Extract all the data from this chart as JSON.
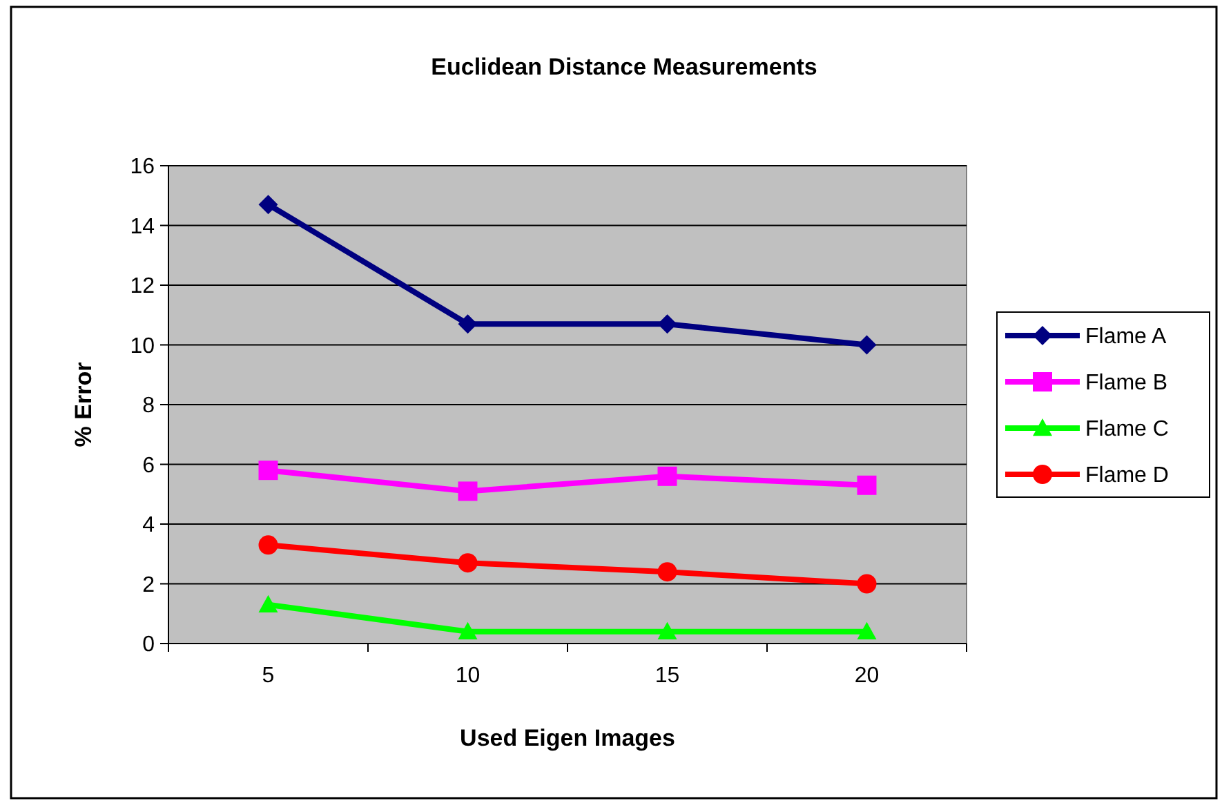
{
  "chart_data": {
    "type": "line",
    "title": "Euclidean Distance Measurements",
    "xlabel": "Used Eigen Images",
    "ylabel": "% Error",
    "categories": [
      "5",
      "10",
      "15",
      "20"
    ],
    "series": [
      {
        "name": "Flame A",
        "color": "#000080",
        "marker": "diamond",
        "values": [
          14.7,
          10.7,
          10.7,
          10.0
        ]
      },
      {
        "name": "Flame B",
        "color": "#ff00ff",
        "marker": "square",
        "values": [
          5.8,
          5.1,
          5.6,
          5.3
        ]
      },
      {
        "name": "Flame C",
        "color": "#00ff00",
        "marker": "triangle",
        "values": [
          1.3,
          0.4,
          0.4,
          0.4
        ]
      },
      {
        "name": "Flame D",
        "color": "#ff0000",
        "marker": "circle",
        "values": [
          3.3,
          2.7,
          2.4,
          2.0
        ]
      }
    ],
    "ylim": [
      0,
      16
    ],
    "yticks": [
      0,
      2,
      4,
      6,
      8,
      10,
      12,
      14,
      16
    ],
    "grid": "y",
    "legend": "right"
  }
}
